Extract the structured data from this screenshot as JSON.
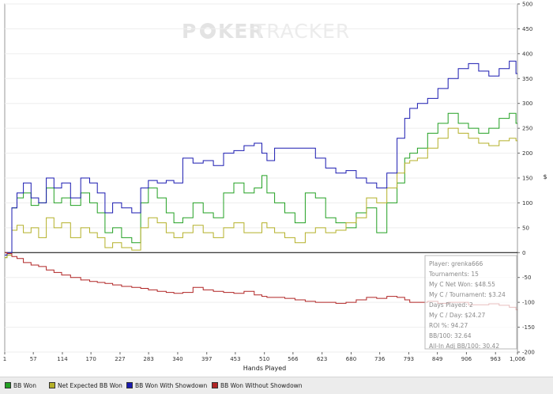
{
  "watermark": {
    "left": "P",
    "chip": "O",
    "mid": "KER",
    "right": "TRACKER"
  },
  "chart_data": {
    "type": "line",
    "xlabel": "Hands Played",
    "ylabel": "$",
    "xlim": [
      1,
      1006
    ],
    "ylim": [
      -200,
      500
    ],
    "xticks": [
      "1",
      "57",
      "114",
      "170",
      "227",
      "283",
      "340",
      "397",
      "453",
      "510",
      "566",
      "623",
      "680",
      "736",
      "793",
      "849",
      "906",
      "963",
      "1,006"
    ],
    "yticks": [
      "500",
      "450",
      "400",
      "350",
      "300",
      "250",
      "200",
      "150",
      "100",
      "50",
      "0",
      "-50",
      "-100",
      "-150",
      "-200"
    ],
    "series": [
      {
        "name": "BB Won",
        "color": "#22a022",
        "x": [
          1,
          10,
          20,
          30,
          45,
          60,
          75,
          90,
          105,
          120,
          140,
          160,
          175,
          190,
          205,
          220,
          240,
          260,
          275,
          290,
          310,
          325,
          340,
          360,
          380,
          400,
          420,
          440,
          460,
          480,
          500,
          510,
          520,
          540,
          560,
          580,
          600,
          620,
          640,
          660,
          680,
          700,
          720,
          740,
          760,
          780,
          790,
          800,
          820,
          840,
          860,
          880,
          900,
          920,
          940,
          960,
          980,
          1000,
          1006
        ],
        "y": [
          -10,
          -5,
          90,
          110,
          120,
          95,
          100,
          130,
          100,
          110,
          95,
          120,
          100,
          80,
          40,
          50,
          30,
          20,
          100,
          130,
          110,
          80,
          60,
          70,
          100,
          80,
          70,
          120,
          140,
          120,
          130,
          155,
          120,
          100,
          80,
          60,
          120,
          110,
          70,
          60,
          50,
          80,
          90,
          40,
          100,
          140,
          190,
          200,
          210,
          240,
          260,
          280,
          260,
          250,
          240,
          250,
          270,
          280,
          260
        ]
      },
      {
        "name": "Net Expected BB Won",
        "color": "#b4b028",
        "x": [
          1,
          10,
          20,
          30,
          45,
          60,
          75,
          90,
          105,
          120,
          140,
          160,
          175,
          190,
          205,
          220,
          240,
          260,
          275,
          290,
          310,
          325,
          340,
          360,
          380,
          400,
          420,
          440,
          460,
          480,
          500,
          510,
          520,
          540,
          560,
          580,
          600,
          620,
          640,
          660,
          680,
          700,
          720,
          740,
          760,
          780,
          790,
          800,
          820,
          840,
          860,
          880,
          900,
          920,
          940,
          960,
          980,
          1000,
          1006
        ],
        "y": [
          -10,
          -5,
          45,
          55,
          40,
          50,
          30,
          70,
          50,
          60,
          30,
          50,
          40,
          30,
          10,
          20,
          10,
          5,
          50,
          70,
          60,
          40,
          30,
          40,
          55,
          40,
          30,
          50,
          60,
          40,
          40,
          60,
          50,
          40,
          30,
          20,
          40,
          50,
          40,
          45,
          60,
          70,
          110,
          100,
          130,
          160,
          180,
          185,
          190,
          210,
          230,
          250,
          240,
          230,
          220,
          215,
          225,
          230,
          225
        ]
      },
      {
        "name": "BB Won With Showdown",
        "color": "#1a1ab0",
        "x": [
          1,
          10,
          20,
          30,
          45,
          60,
          75,
          90,
          105,
          120,
          140,
          160,
          175,
          190,
          205,
          220,
          240,
          260,
          275,
          290,
          310,
          325,
          340,
          360,
          380,
          400,
          420,
          440,
          460,
          480,
          500,
          510,
          520,
          540,
          560,
          580,
          600,
          620,
          640,
          660,
          680,
          700,
          720,
          740,
          760,
          780,
          790,
          800,
          820,
          840,
          860,
          880,
          900,
          920,
          940,
          960,
          980,
          1000,
          1006
        ],
        "y": [
          -5,
          0,
          90,
          120,
          140,
          110,
          100,
          150,
          130,
          140,
          110,
          150,
          140,
          120,
          80,
          100,
          90,
          80,
          130,
          145,
          140,
          145,
          140,
          190,
          180,
          185,
          175,
          200,
          205,
          215,
          220,
          200,
          185,
          210,
          210,
          210,
          210,
          190,
          170,
          160,
          165,
          150,
          140,
          130,
          160,
          230,
          270,
          290,
          300,
          310,
          330,
          350,
          370,
          380,
          365,
          355,
          370,
          385,
          360
        ]
      },
      {
        "name": "BB Won Without Showdown",
        "color": "#b02424",
        "x": [
          1,
          10,
          20,
          30,
          45,
          60,
          75,
          90,
          105,
          120,
          140,
          160,
          175,
          190,
          205,
          220,
          240,
          260,
          275,
          290,
          310,
          325,
          340,
          360,
          380,
          400,
          420,
          440,
          460,
          480,
          500,
          510,
          520,
          540,
          560,
          580,
          600,
          620,
          640,
          660,
          680,
          700,
          720,
          740,
          760,
          780,
          790,
          800,
          820,
          840,
          860,
          880,
          900,
          920,
          940,
          960,
          980,
          1000,
          1006
        ],
        "y": [
          0,
          -2,
          -8,
          -12,
          -20,
          -25,
          -28,
          -35,
          -40,
          -45,
          -50,
          -55,
          -58,
          -60,
          -62,
          -65,
          -68,
          -70,
          -72,
          -75,
          -78,
          -80,
          -82,
          -80,
          -70,
          -75,
          -78,
          -80,
          -82,
          -78,
          -85,
          -88,
          -90,
          -90,
          -92,
          -95,
          -98,
          -100,
          -100,
          -102,
          -100,
          -95,
          -90,
          -92,
          -88,
          -90,
          -95,
          -100,
          -100,
          -98,
          -102,
          -100,
          -100,
          -105,
          -105,
          -103,
          -106,
          -110,
          -115
        ]
      }
    ],
    "legend": [
      "BB Won",
      "Net Expected BB Won",
      "BB Won With Showdown",
      "BB Won Without Showdown"
    ],
    "legend_position": "bottom"
  },
  "stats": {
    "lines": [
      "Player: grenka666",
      "Tournaments: 15",
      "My C Net Won: $48.55",
      "My C / Tournament: $3.24",
      "Days Played: 2",
      "My C / Day: $24.27",
      "ROI %: 94.27",
      "BB/100: 32.64",
      "All-In Adj BB/100: 30.42"
    ]
  }
}
